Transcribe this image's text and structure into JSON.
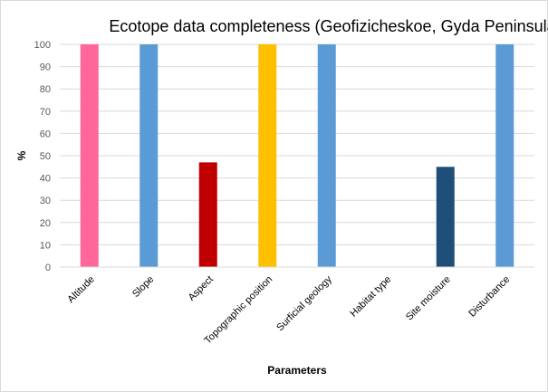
{
  "chart_data": {
    "type": "bar",
    "title": "Ecotope data completeness (Geofizicheskoe,  Gyda Peninsula)",
    "xlabel": "Parameters",
    "ylabel": "%",
    "ylim": [
      0,
      100
    ],
    "yticks": [
      "0",
      "10",
      "20",
      "30",
      "40",
      "50",
      "60",
      "70",
      "80",
      "90",
      "100"
    ],
    "grid": true,
    "legend": "none",
    "categories": [
      "Altitude",
      "Slope",
      "Aspect",
      "Topographic position",
      "Surficial geology",
      "Habitat type",
      "Site moisture",
      "Disturbance"
    ],
    "values": [
      100,
      100,
      47,
      100,
      100,
      0,
      45,
      100
    ],
    "colors": [
      "#ff6699",
      "#5b9bd5",
      "#c00000",
      "#ffc000",
      "#5b9bd5",
      "#5b9bd5",
      "#1f4e79",
      "#5b9bd5"
    ]
  }
}
